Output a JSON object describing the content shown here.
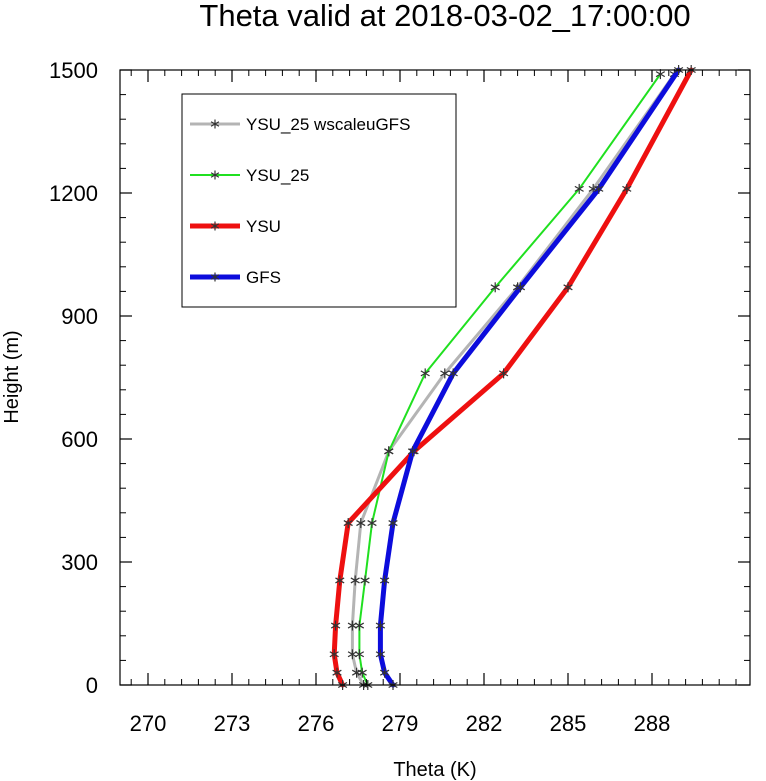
{
  "chart_data": {
    "type": "line",
    "title": "Theta valid at 2018-03-02_17:00:00",
    "xlabel": "Theta (K)",
    "ylabel": "Height (m)",
    "xlim": [
      269,
      291.5
    ],
    "ylim": [
      0,
      1500
    ],
    "xticks": [
      270,
      273,
      276,
      279,
      282,
      285,
      288
    ],
    "xtick_labels": [
      "270",
      "273",
      "276",
      "279",
      "282",
      "285",
      "288"
    ],
    "yticks": [
      0,
      300,
      600,
      900,
      1200,
      1500
    ],
    "ytick_labels": [
      "0",
      "300",
      "600",
      "900",
      "1200",
      "1500"
    ],
    "x_minor_step": 0.6,
    "y_minor_step": 60,
    "grid": false,
    "legend_placement": "top-left",
    "series": [
      {
        "name": "YSU_25 wscaleuGFS",
        "color": "#b4b4b4",
        "width": 3,
        "points": [
          [
            277.7,
            0
          ],
          [
            277.45,
            30
          ],
          [
            277.3,
            75
          ],
          [
            277.3,
            145
          ],
          [
            277.4,
            255
          ],
          [
            277.6,
            395
          ],
          [
            278.6,
            570
          ],
          [
            280.6,
            760
          ],
          [
            283.2,
            970
          ],
          [
            285.9,
            1210
          ],
          [
            288.8,
            1490
          ]
        ]
      },
      {
        "name": "YSU_25",
        "color": "#20e020",
        "width": 2,
        "points": [
          [
            277.85,
            0
          ],
          [
            277.65,
            30
          ],
          [
            277.55,
            75
          ],
          [
            277.55,
            145
          ],
          [
            277.75,
            255
          ],
          [
            278.0,
            395
          ],
          [
            278.6,
            570
          ],
          [
            279.9,
            760
          ],
          [
            282.4,
            970
          ],
          [
            285.4,
            1210
          ],
          [
            288.3,
            1490
          ]
        ]
      },
      {
        "name": "YSU",
        "color": "#ee1010",
        "width": 5,
        "points": [
          [
            276.95,
            0
          ],
          [
            276.75,
            30
          ],
          [
            276.65,
            75
          ],
          [
            276.7,
            145
          ],
          [
            276.85,
            255
          ],
          [
            277.15,
            395
          ],
          [
            279.5,
            570
          ],
          [
            282.7,
            760
          ],
          [
            285.0,
            970
          ],
          [
            287.1,
            1210
          ],
          [
            289.4,
            1500
          ]
        ]
      },
      {
        "name": "GFS",
        "color": "#0c0cdc",
        "width": 5,
        "points": [
          [
            278.75,
            0
          ],
          [
            278.45,
            30
          ],
          [
            278.3,
            75
          ],
          [
            278.3,
            145
          ],
          [
            278.45,
            255
          ],
          [
            278.75,
            395
          ],
          [
            279.45,
            570
          ],
          [
            280.9,
            760
          ],
          [
            283.3,
            970
          ],
          [
            286.1,
            1210
          ],
          [
            288.95,
            1500
          ]
        ]
      }
    ]
  }
}
